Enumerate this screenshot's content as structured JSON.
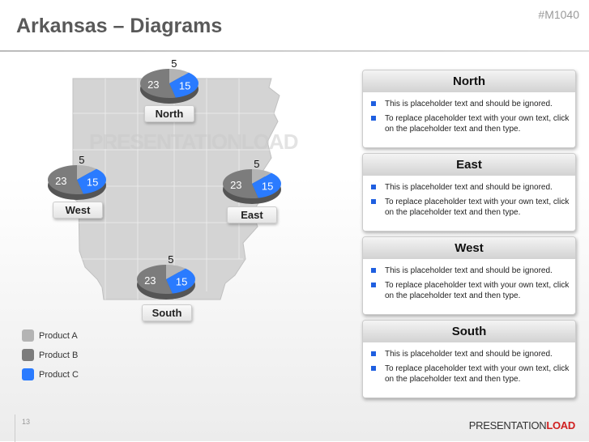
{
  "header": {
    "title": "Arkansas – Diagrams",
    "code": "#M1040"
  },
  "watermark": "PRESENTATIONLOAD",
  "colors": {
    "product_a": "#b4b4b4",
    "product_b": "#7c7c7c",
    "product_c": "#2a7bff",
    "bullet": "#1f5fe0"
  },
  "chart_data": {
    "type": "pie",
    "series_names": [
      "Product A",
      "Product B",
      "Product C"
    ],
    "regions": [
      {
        "name": "North",
        "values": [
          5,
          23,
          15
        ]
      },
      {
        "name": "West",
        "values": [
          5,
          23,
          15
        ]
      },
      {
        "name": "East",
        "values": [
          5,
          23,
          15
        ]
      },
      {
        "name": "South",
        "values": [
          5,
          23,
          15
        ]
      }
    ]
  },
  "legend": [
    "Product A",
    "Product B",
    "Product C"
  ],
  "panels": [
    {
      "title": "North",
      "bullets": [
        "This is placeholder text and should be ignored.",
        "To replace placeholder text with your own text, click on the placeholder text and then type."
      ]
    },
    {
      "title": "East",
      "bullets": [
        "This is placeholder text and should be ignored.",
        "To replace placeholder text with your own text, click on the placeholder text and then type."
      ]
    },
    {
      "title": "West",
      "bullets": [
        "This is placeholder text and should be ignored.",
        "To replace placeholder text with your own text, click on the placeholder text and then type."
      ]
    },
    {
      "title": "South",
      "bullets": [
        "This is placeholder text and should be ignored.",
        "To replace placeholder text with your own text, click on the placeholder text and then type."
      ]
    }
  ],
  "footer": {
    "page": "13",
    "logo_a": "PRESENTATION",
    "logo_b": "LOAD"
  }
}
